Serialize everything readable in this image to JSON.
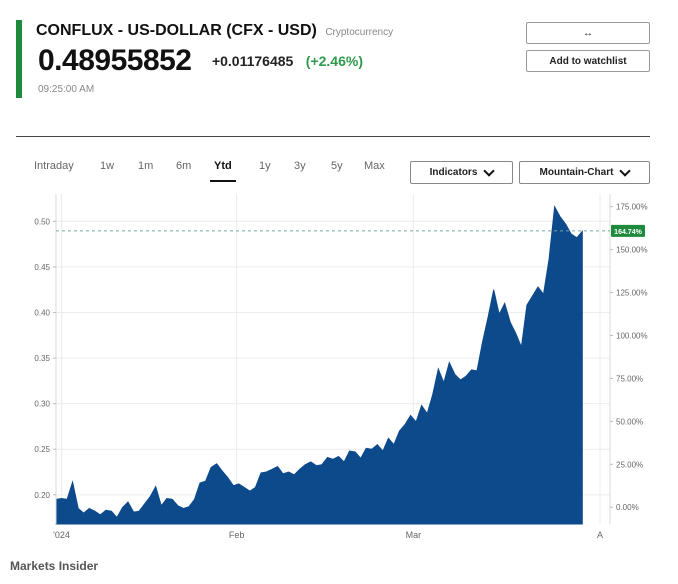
{
  "quote": {
    "title": "CONFLUX - US-DOLLAR (CFX - USD)",
    "asset_type": "Cryptocurrency",
    "price": "0.48955852",
    "change": "+0.01176485",
    "change_pct": "(+2.46%)",
    "time": "09:25:00 AM",
    "accent_color": "#1e8a3c",
    "positive_color": "#2e9a4a"
  },
  "actions": {
    "compare_label": "↔",
    "watchlist_label": "Add to watchlist"
  },
  "timeframes": {
    "items": [
      "Intraday",
      "1w",
      "1m",
      "6m",
      "Ytd",
      "1y",
      "3y",
      "5y",
      "Max"
    ],
    "active": "Ytd"
  },
  "controls": {
    "indicators_label": "Indicators",
    "chart_type_label": "Mountain-Chart"
  },
  "source": "Markets Insider",
  "chart_data": {
    "type": "area",
    "fill_color": "#0d4a8c",
    "reference_line_color": "#7aa7a3",
    "badge_color": "#1e8a3c",
    "grid": true,
    "x_domain": [
      0,
      100
    ],
    "x_tick_labels": [
      {
        "x": 1,
        "label": "'024"
      },
      {
        "x": 32.6,
        "label": "Feb"
      },
      {
        "x": 64.5,
        "label": "Mar"
      },
      {
        "x": 98.2,
        "label": "A"
      }
    ],
    "y_left": {
      "min": 0.168,
      "max": 0.53,
      "ticks": [
        0.2,
        0.25,
        0.3,
        0.35,
        0.4,
        0.45,
        0.5
      ],
      "labels": [
        "0.20",
        "0.25",
        "0.30",
        "0.35",
        "0.40",
        "0.45",
        "0.50"
      ]
    },
    "y_right": {
      "min": -9.78,
      "max": 182.38,
      "ticks": [
        0,
        25,
        50,
        75,
        100,
        125,
        150,
        175
      ],
      "labels": [
        "0.00%",
        "25.00%",
        "50.00%",
        "75.00%",
        "100.00%",
        "125.00%",
        "150.00%",
        "175.00%"
      ]
    },
    "current_value": 0.4895,
    "current_label": "164.74%",
    "series": [
      [
        0,
        0.195
      ],
      [
        1,
        0.196
      ],
      [
        2,
        0.195
      ],
      [
        3,
        0.214
      ],
      [
        4,
        0.185
      ],
      [
        5,
        0.18
      ],
      [
        6,
        0.185
      ],
      [
        7,
        0.182
      ],
      [
        8,
        0.178
      ],
      [
        9,
        0.183
      ],
      [
        10,
        0.182
      ],
      [
        11,
        0.175
      ],
      [
        12,
        0.186
      ],
      [
        13,
        0.192
      ],
      [
        14,
        0.181
      ],
      [
        15,
        0.182
      ],
      [
        16,
        0.19
      ],
      [
        17,
        0.198
      ],
      [
        18,
        0.209
      ],
      [
        19,
        0.188
      ],
      [
        20,
        0.196
      ],
      [
        21,
        0.195
      ],
      [
        22,
        0.188
      ],
      [
        23,
        0.185
      ],
      [
        24,
        0.187
      ],
      [
        25,
        0.195
      ],
      [
        26,
        0.213
      ],
      [
        27,
        0.215
      ],
      [
        28,
        0.23
      ],
      [
        29,
        0.234
      ],
      [
        30,
        0.226
      ],
      [
        31,
        0.219
      ],
      [
        32,
        0.21
      ],
      [
        33,
        0.212
      ],
      [
        34,
        0.208
      ],
      [
        35,
        0.204
      ],
      [
        36,
        0.208
      ],
      [
        37,
        0.224
      ],
      [
        38,
        0.225
      ],
      [
        39,
        0.228
      ],
      [
        40,
        0.231
      ],
      [
        41,
        0.223
      ],
      [
        42,
        0.225
      ],
      [
        43,
        0.222
      ],
      [
        44,
        0.228
      ],
      [
        45,
        0.233
      ],
      [
        46,
        0.236
      ],
      [
        47,
        0.232
      ],
      [
        48,
        0.233
      ],
      [
        49,
        0.241
      ],
      [
        50,
        0.239
      ],
      [
        51,
        0.242
      ],
      [
        52,
        0.236
      ],
      [
        53,
        0.248
      ],
      [
        54,
        0.247
      ],
      [
        55,
        0.24
      ],
      [
        56,
        0.251
      ],
      [
        57,
        0.25
      ],
      [
        58,
        0.255
      ],
      [
        59,
        0.248
      ],
      [
        60,
        0.262
      ],
      [
        61,
        0.255
      ],
      [
        62,
        0.27
      ],
      [
        63,
        0.277
      ],
      [
        64,
        0.287
      ],
      [
        65,
        0.28
      ],
      [
        66,
        0.298
      ],
      [
        67,
        0.289
      ],
      [
        68,
        0.31
      ],
      [
        69,
        0.338
      ],
      [
        70,
        0.323
      ],
      [
        71,
        0.345
      ],
      [
        72,
        0.332
      ],
      [
        73,
        0.326
      ],
      [
        74,
        0.33
      ],
      [
        75,
        0.337
      ],
      [
        76,
        0.336
      ],
      [
        77,
        0.368
      ],
      [
        78,
        0.395
      ],
      [
        79,
        0.425
      ],
      [
        80,
        0.398
      ],
      [
        81,
        0.41
      ],
      [
        82,
        0.389
      ],
      [
        83,
        0.377
      ],
      [
        84,
        0.362
      ],
      [
        85,
        0.408
      ],
      [
        86,
        0.418
      ],
      [
        87,
        0.428
      ],
      [
        88,
        0.42
      ],
      [
        89,
        0.459
      ],
      [
        90,
        0.516
      ],
      [
        91,
        0.505
      ],
      [
        92,
        0.497
      ],
      [
        93,
        0.486
      ],
      [
        94,
        0.482
      ],
      [
        95,
        0.489
      ]
    ]
  }
}
